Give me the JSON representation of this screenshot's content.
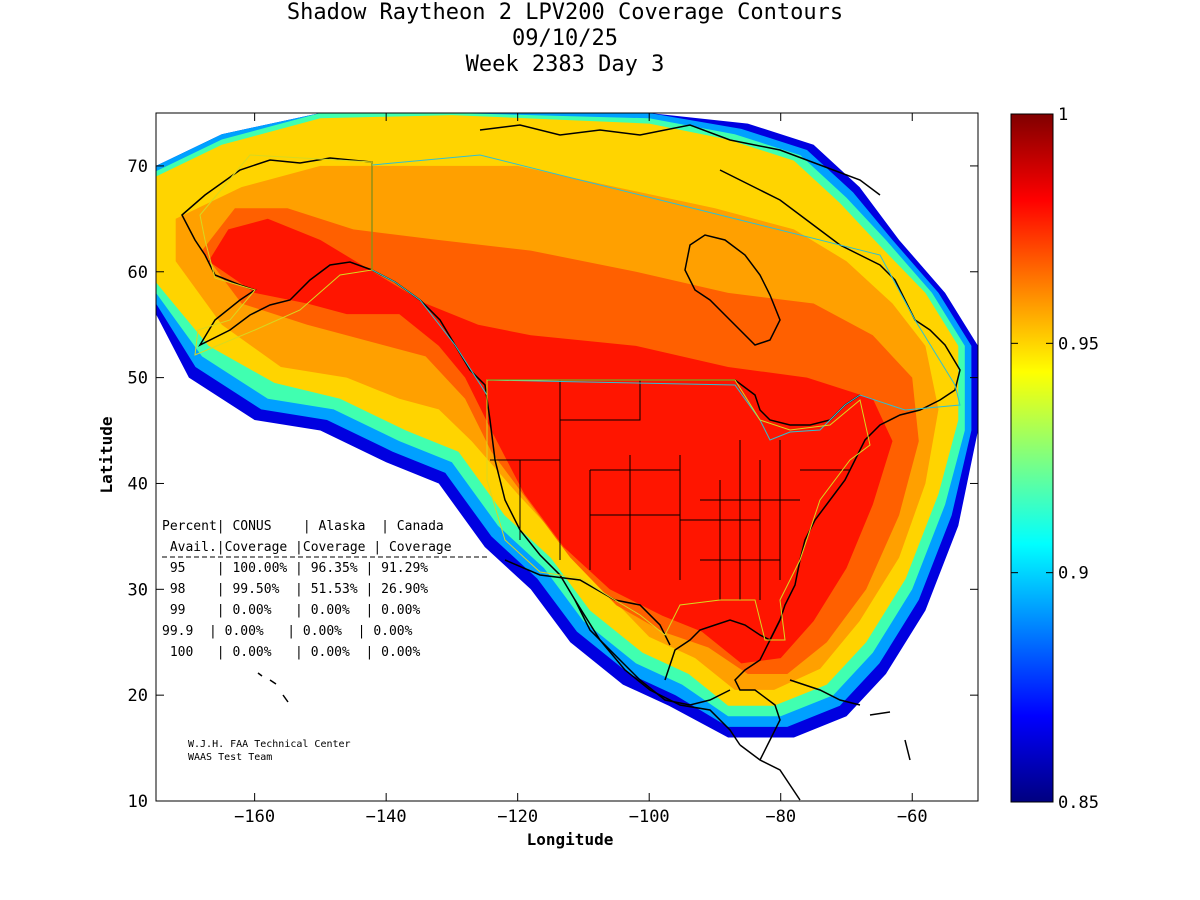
{
  "title": {
    "line1": "Shadow Raytheon 2 LPV200 Coverage Contours",
    "line2": "09/10/25",
    "line3": "Week 2383 Day 3"
  },
  "axes": {
    "xlabel": "Longitude",
    "ylabel": "Latitude",
    "xlim": [
      -175,
      -50
    ],
    "ylim": [
      10,
      75
    ],
    "xticks": [
      -160,
      -140,
      -120,
      -100,
      -80,
      -60
    ],
    "yticks": [
      10,
      20,
      30,
      40,
      50,
      60,
      70
    ]
  },
  "colorbar": {
    "min": 0.85,
    "max": 1,
    "tick_labels": [
      "1",
      "0.95",
      "0.9",
      "0.85"
    ],
    "tick_values": [
      1,
      0.95,
      0.9,
      0.85
    ],
    "colormap": "jet"
  },
  "table": {
    "header1": [
      "Percent",
      "CONUS",
      "Alaska",
      "Canada"
    ],
    "header2": [
      "Avail.",
      "Coverage",
      "Coverage",
      "Coverage"
    ],
    "rows": [
      [
        "95",
        "100.00%",
        "96.35%",
        "91.29%"
      ],
      [
        "98",
        "99.50%",
        "51.53%",
        "26.90%"
      ],
      [
        "99",
        "0.00%",
        "0.00%",
        "0.00%"
      ],
      [
        "99.9",
        "0.00%",
        "0.00%",
        "0.00%"
      ],
      [
        "100",
        "0.00%",
        "0.00%",
        "0.00%"
      ]
    ]
  },
  "credits": {
    "line1": "W.J.H. FAA Technical Center",
    "line2": "WAAS Test Team"
  },
  "contours": [
    {
      "level": 0.87,
      "color": "#0000e0",
      "points": [
        [
          -175,
          56
        ],
        [
          -170,
          50
        ],
        [
          -160,
          46
        ],
        [
          -150,
          45
        ],
        [
          -140,
          42
        ],
        [
          -132,
          40
        ],
        [
          -125,
          34
        ],
        [
          -118,
          30
        ],
        [
          -112,
          25
        ],
        [
          -104,
          21
        ],
        [
          -97,
          19
        ],
        [
          -88,
          16
        ],
        [
          -78,
          16
        ],
        [
          -70,
          18
        ],
        [
          -64,
          22
        ],
        [
          -58,
          28
        ],
        [
          -53,
          36
        ],
        [
          -50,
          45
        ],
        [
          -50,
          53
        ],
        [
          -55,
          58
        ],
        [
          -62,
          63
        ],
        [
          -68,
          68
        ],
        [
          -75,
          72
        ],
        [
          -85,
          74
        ],
        [
          -100,
          75
        ],
        [
          -130,
          75
        ],
        [
          -150,
          75
        ],
        [
          -165,
          73
        ],
        [
          -175,
          70
        ]
      ]
    },
    {
      "level": 0.9,
      "color": "#00a0ff",
      "points": [
        [
          -175,
          57
        ],
        [
          -169,
          51
        ],
        [
          -159,
          47
        ],
        [
          -149,
          46
        ],
        [
          -139,
          43
        ],
        [
          -131,
          41
        ],
        [
          -124,
          35
        ],
        [
          -117,
          31
        ],
        [
          -111,
          26
        ],
        [
          -103,
          22
        ],
        [
          -96,
          20
        ],
        [
          -88,
          17
        ],
        [
          -79,
          17
        ],
        [
          -71,
          19
        ],
        [
          -65,
          23
        ],
        [
          -59,
          29
        ],
        [
          -54,
          37
        ],
        [
          -51,
          45
        ],
        [
          -51,
          53
        ],
        [
          -56,
          58
        ],
        [
          -63,
          63
        ],
        [
          -69,
          67.5
        ],
        [
          -76,
          71.5
        ],
        [
          -86,
          73.5
        ],
        [
          -100,
          75
        ],
        [
          -130,
          75
        ],
        [
          -150,
          75
        ],
        [
          -165,
          73
        ],
        [
          -175,
          70
        ]
      ]
    },
    {
      "level": 0.93,
      "color": "#40ffb0",
      "points": [
        [
          -175,
          58
        ],
        [
          -168,
          52
        ],
        [
          -158,
          48
        ],
        [
          -148,
          47
        ],
        [
          -138,
          44
        ],
        [
          -130,
          42
        ],
        [
          -123,
          36
        ],
        [
          -116,
          32
        ],
        [
          -110,
          27
        ],
        [
          -102,
          23
        ],
        [
          -95,
          21
        ],
        [
          -88,
          18
        ],
        [
          -80,
          18
        ],
        [
          -72,
          20
        ],
        [
          -66,
          24
        ],
        [
          -60,
          30
        ],
        [
          -55,
          38
        ],
        [
          -52,
          45
        ],
        [
          -52,
          53
        ],
        [
          -57,
          58
        ],
        [
          -64,
          63
        ],
        [
          -70,
          67
        ],
        [
          -77,
          71
        ],
        [
          -87,
          73
        ],
        [
          -100,
          74.5
        ],
        [
          -130,
          75
        ],
        [
          -150,
          75
        ],
        [
          -165,
          72.5
        ],
        [
          -175,
          69.5
        ]
      ]
    },
    {
      "level": 0.95,
      "color": "#ffd400",
      "points": [
        [
          -175,
          59
        ],
        [
          -167,
          53
        ],
        [
          -157,
          49.5
        ],
        [
          -147,
          48
        ],
        [
          -137,
          45
        ],
        [
          -129,
          43
        ],
        [
          -122,
          37
        ],
        [
          -115,
          33
        ],
        [
          -109,
          28
        ],
        [
          -101,
          24
        ],
        [
          -94,
          22
        ],
        [
          -88,
          19
        ],
        [
          -81,
          19
        ],
        [
          -73,
          21
        ],
        [
          -67,
          25
        ],
        [
          -61,
          31
        ],
        [
          -56,
          39
        ],
        [
          -53,
          46
        ],
        [
          -53,
          53
        ],
        [
          -58,
          58
        ],
        [
          -65,
          62.5
        ],
        [
          -71,
          66.5
        ],
        [
          -78,
          70.5
        ],
        [
          -88,
          72.5
        ],
        [
          -100,
          74
        ],
        [
          -130,
          74.8
        ],
        [
          -150,
          74.5
        ],
        [
          -165,
          72
        ],
        [
          -175,
          69
        ]
      ]
    },
    {
      "level": 0.96,
      "color": "#ffa000",
      "points": [
        [
          -172,
          61
        ],
        [
          -165,
          55
        ],
        [
          -156,
          51
        ],
        [
          -146,
          50
        ],
        [
          -138,
          48
        ],
        [
          -132,
          47
        ],
        [
          -127,
          44
        ],
        [
          -120,
          39
        ],
        [
          -114,
          35
        ],
        [
          -107,
          30
        ],
        [
          -100,
          25.5
        ],
        [
          -93,
          23.5
        ],
        [
          -87,
          20.5
        ],
        [
          -81,
          20.5
        ],
        [
          -74,
          22.5
        ],
        [
          -68,
          27
        ],
        [
          -62,
          33
        ],
        [
          -58,
          40
        ],
        [
          -56,
          47
        ],
        [
          -58,
          53
        ],
        [
          -63,
          57
        ],
        [
          -70,
          61
        ],
        [
          -78,
          64
        ],
        [
          -90,
          66
        ],
        [
          -105,
          68
        ],
        [
          -120,
          70
        ],
        [
          -135,
          70
        ],
        [
          -150,
          70
        ],
        [
          -162,
          68
        ],
        [
          -172,
          65
        ]
      ]
    },
    {
      "level": 0.97,
      "color": "#ff6000",
      "points": [
        [
          -168,
          62
        ],
        [
          -162,
          57
        ],
        [
          -152,
          55
        ],
        [
          -140,
          53
        ],
        [
          -134,
          52
        ],
        [
          -128,
          48
        ],
        [
          -124,
          43
        ],
        [
          -118,
          38
        ],
        [
          -112,
          33
        ],
        [
          -105,
          28.5
        ],
        [
          -98,
          26
        ],
        [
          -91,
          24.5
        ],
        [
          -85,
          22
        ],
        [
          -79,
          22
        ],
        [
          -73,
          25
        ],
        [
          -67,
          30
        ],
        [
          -62,
          37
        ],
        [
          -59,
          44
        ],
        [
          -60,
          50
        ],
        [
          -66,
          54
        ],
        [
          -75,
          57
        ],
        [
          -88,
          58
        ],
        [
          -102,
          60
        ],
        [
          -118,
          62
        ],
        [
          -132,
          63
        ],
        [
          -145,
          64
        ],
        [
          -155,
          66
        ],
        [
          -163,
          66
        ]
      ]
    },
    {
      "level": 0.98,
      "color": "#ff1500",
      "points": [
        [
          -167,
          61
        ],
        [
          -160,
          58
        ],
        [
          -152,
          57
        ],
        [
          -146,
          56
        ],
        [
          -138,
          56
        ],
        [
          -132,
          53
        ],
        [
          -128,
          50
        ],
        [
          -124,
          45
        ],
        [
          -119,
          39
        ],
        [
          -113,
          34
        ],
        [
          -106,
          30
        ],
        [
          -98,
          27.5
        ],
        [
          -92,
          26
        ],
        [
          -86,
          23
        ],
        [
          -80,
          23.5
        ],
        [
          -75,
          27
        ],
        [
          -70,
          32
        ],
        [
          -66,
          38
        ],
        [
          -63,
          44
        ],
        [
          -66,
          48
        ],
        [
          -76,
          50
        ],
        [
          -88,
          51
        ],
        [
          -102,
          53
        ],
        [
          -118,
          54
        ],
        [
          -126,
          55
        ],
        [
          -134,
          57
        ],
        [
          -142,
          60
        ],
        [
          -150,
          63
        ],
        [
          -158,
          65
        ],
        [
          -164,
          64
        ]
      ]
    }
  ]
}
